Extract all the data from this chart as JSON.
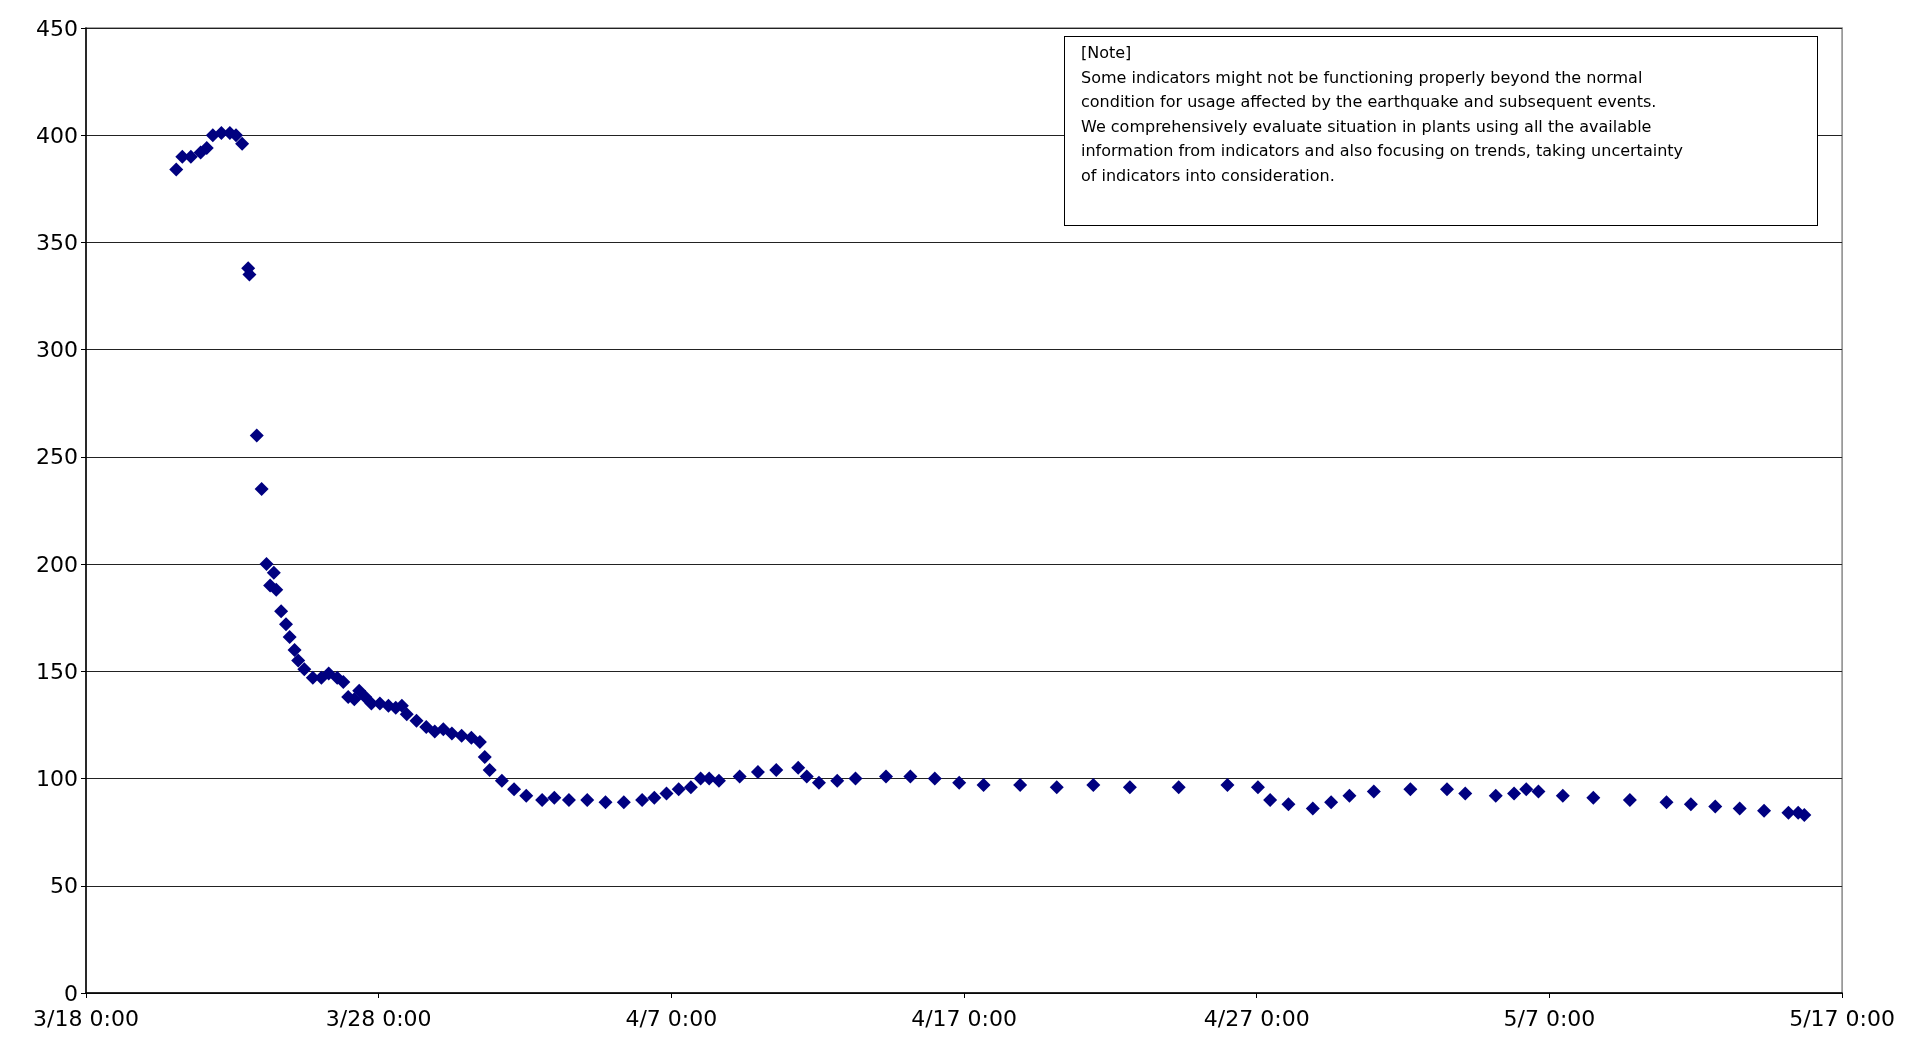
{
  "chart_data": {
    "type": "scatter",
    "marker": "diamond",
    "grid": "y",
    "annotations": [
      "[Note]\nSome indicators might not be functioning properly beyond the normal\ncondition for usage affected by the earthquake and subsequent events.\nWe comprehensively evaluate situation in plants using all the available\ninformation from indicators and also focusing on trends, taking uncertainty\nof indicators into consideration."
    ],
    "xlim": [
      "--03-18",
      "--05-17"
    ],
    "xticks": [
      {
        "value": "--03-18",
        "label": "3/18 0:00"
      },
      {
        "value": "--03-28",
        "label": "3/28 0:00"
      },
      {
        "value": "--04-07",
        "label": "4/7 0:00"
      },
      {
        "value": "--04-17",
        "label": "4/17 0:00"
      },
      {
        "value": "--04-27",
        "label": "4/27 0:00"
      },
      {
        "value": "--05-07",
        "label": "5/7 0:00"
      },
      {
        "value": "--05-17",
        "label": "5/17 0:00"
      }
    ],
    "ylim": [
      0,
      450
    ],
    "yticks": [
      0,
      50,
      100,
      150,
      200,
      250,
      300,
      350,
      400,
      450
    ],
    "x": [
      "--03-21T02:00",
      "--03-21T07:00",
      "--03-21T14:00",
      "--03-21T22:00",
      "--03-22T03:00",
      "--03-22T08:00",
      "--03-22T15:00",
      "--03-22T22:00",
      "--03-23T03:00",
      "--03-23T08:00",
      "--03-23T13:00",
      "--03-23T14:00",
      "--03-23T20:00",
      "--03-24T00:00",
      "--03-24T04:00",
      "--03-24T07:00",
      "--03-24T10:00",
      "--03-24T12:00",
      "--03-24T16:00",
      "--03-24T20:00",
      "--03-24T23:00",
      "--03-25T03:00",
      "--03-25T06:00",
      "--03-25T11:00",
      "--03-25T18:00",
      "--03-26T01:00",
      "--03-26T07:00",
      "--03-26T14:00",
      "--03-26T19:00",
      "--03-26T23:00",
      "--03-27T04:00",
      "--03-27T08:00",
      "--03-27T13:00",
      "--03-27T18:00",
      "--03-28T01:00",
      "--03-28T08:00",
      "--03-28T14:00",
      "--03-28T19:00",
      "--03-28T23:00",
      "--03-29T07:00",
      "--03-29T15:00",
      "--03-29T22:00",
      "--03-30T05:00",
      "--03-30T12:00",
      "--03-30T20:00",
      "--03-31T04:00",
      "--03-31T11:00",
      "--03-31T15:00",
      "--03-31T19:00",
      "--04-01T05:00",
      "--04-01T15:00",
      "--04-02T01:00",
      "--04-02T14:00",
      "--04-03T00:00",
      "--04-03T12:00",
      "--04-04T03:00",
      "--04-04T18:00",
      "--04-05T09:00",
      "--04-06T00:00",
      "--04-06T10:00",
      "--04-06T20:00",
      "--04-07T06:00",
      "--04-07T16:00",
      "--04-08T00:00",
      "--04-08T07:00",
      "--04-08T15:00",
      "--04-09T08:00",
      "--04-09T23:00",
      "--04-10T14:00",
      "--04-11T08:00",
      "--04-11T15:00",
      "--04-12T01:00",
      "--04-12T16:00",
      "--04-13T07:00",
      "--04-14T08:00",
      "--04-15T04:00",
      "--04-16T00:00",
      "--04-16T20:00",
      "--04-17T16:00",
      "--04-18T22:00",
      "--04-20T04:00",
      "--04-21T10:00",
      "--04-22T16:00",
      "--04-24T08:00",
      "--04-26T00:00",
      "--04-27T01:00",
      "--04-27T11:00",
      "--04-28T02:00",
      "--04-28T22:00",
      "--04-29T13:00",
      "--04-30T04:00",
      "--05-01T00:00",
      "--05-02T06:00",
      "--05-03T12:00",
      "--05-04T03:00",
      "--05-05T04:00",
      "--05-05T19:00",
      "--05-06T05:00",
      "--05-06T15:00",
      "--05-07T11:00",
      "--05-08T12:00",
      "--05-09T18:00",
      "--05-11T00:00",
      "--05-11T20:00",
      "--05-12T16:00",
      "--05-13T12:00",
      "--05-14T08:00",
      "--05-15T04:00",
      "--05-15T12:00",
      "--05-15T17:00"
    ],
    "series": [
      {
        "color": "#000080",
        "values": [
          384,
          390,
          390,
          392,
          394,
          400,
          401,
          401,
          400,
          396,
          338,
          335,
          260,
          235,
          200,
          190,
          196,
          188,
          178,
          172,
          166,
          160,
          155,
          151,
          147,
          147,
          149,
          147,
          145,
          138,
          137,
          141,
          138,
          135,
          135,
          134,
          133,
          134,
          130,
          127,
          124,
          122,
          123,
          121,
          120,
          119,
          117,
          110,
          104,
          99,
          95,
          92,
          90,
          91,
          90,
          90,
          89,
          89,
          90,
          91,
          93,
          95,
          96,
          100,
          100,
          99,
          101,
          103,
          104,
          105,
          101,
          98,
          99,
          100,
          101,
          101,
          100,
          98,
          97,
          97,
          96,
          97,
          96,
          96,
          97,
          96,
          90,
          88,
          86,
          89,
          92,
          94,
          95,
          95,
          93,
          92,
          93,
          95,
          94,
          92,
          91,
          90,
          89,
          88,
          87,
          86,
          85,
          84,
          84,
          83
        ]
      }
    ]
  }
}
